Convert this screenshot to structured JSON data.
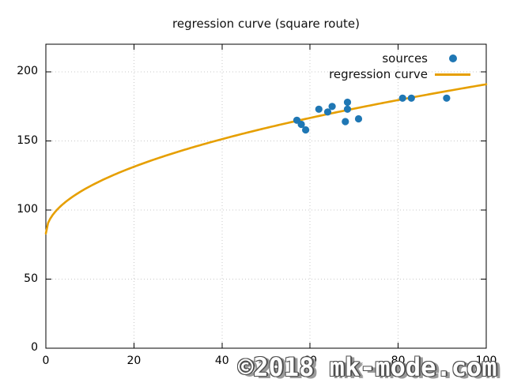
{
  "title": "regression curve (square route)",
  "watermark": "©2018 mk-mode.com",
  "legend": {
    "items": [
      {
        "label": "sources",
        "marker": "point"
      },
      {
        "label": "regression curve",
        "marker": "line"
      }
    ]
  },
  "colors": {
    "points": "#1f77b4",
    "curve": "#e69f00",
    "grid": "#c8c8c8",
    "border": "#000000",
    "text": "#111111",
    "watermark_fill": "#ffffff",
    "watermark_outline": "#4d4d4d",
    "watermark_shadow": "#9a9a9a"
  },
  "chart_data": {
    "type": "scatter",
    "title": "regression curve (square route)",
    "xlabel": "",
    "ylabel": "",
    "xlim": [
      0,
      100
    ],
    "ylim": [
      0,
      220
    ],
    "x_ticks": [
      0,
      20,
      40,
      60,
      80,
      100
    ],
    "y_ticks": [
      0,
      50,
      100,
      150,
      200
    ],
    "grid": true,
    "grid_style": "dotted",
    "legend_position": "top-right",
    "series": [
      {
        "name": "sources",
        "type": "scatter",
        "color": "#1f77b4",
        "points": [
          [
            57,
            165
          ],
          [
            58,
            162
          ],
          [
            59,
            158
          ],
          [
            62,
            173
          ],
          [
            64,
            171
          ],
          [
            65,
            175
          ],
          [
            68,
            164
          ],
          [
            68.5,
            173
          ],
          [
            68.5,
            178
          ],
          [
            71,
            166
          ],
          [
            81,
            181
          ],
          [
            83,
            181
          ],
          [
            91,
            181
          ]
        ]
      },
      {
        "name": "regression curve",
        "type": "line",
        "color": "#e69f00",
        "model": "y = a + b*sqrt(x)",
        "a": 83,
        "b": 10.8,
        "x_range": [
          0,
          100
        ]
      }
    ]
  }
}
